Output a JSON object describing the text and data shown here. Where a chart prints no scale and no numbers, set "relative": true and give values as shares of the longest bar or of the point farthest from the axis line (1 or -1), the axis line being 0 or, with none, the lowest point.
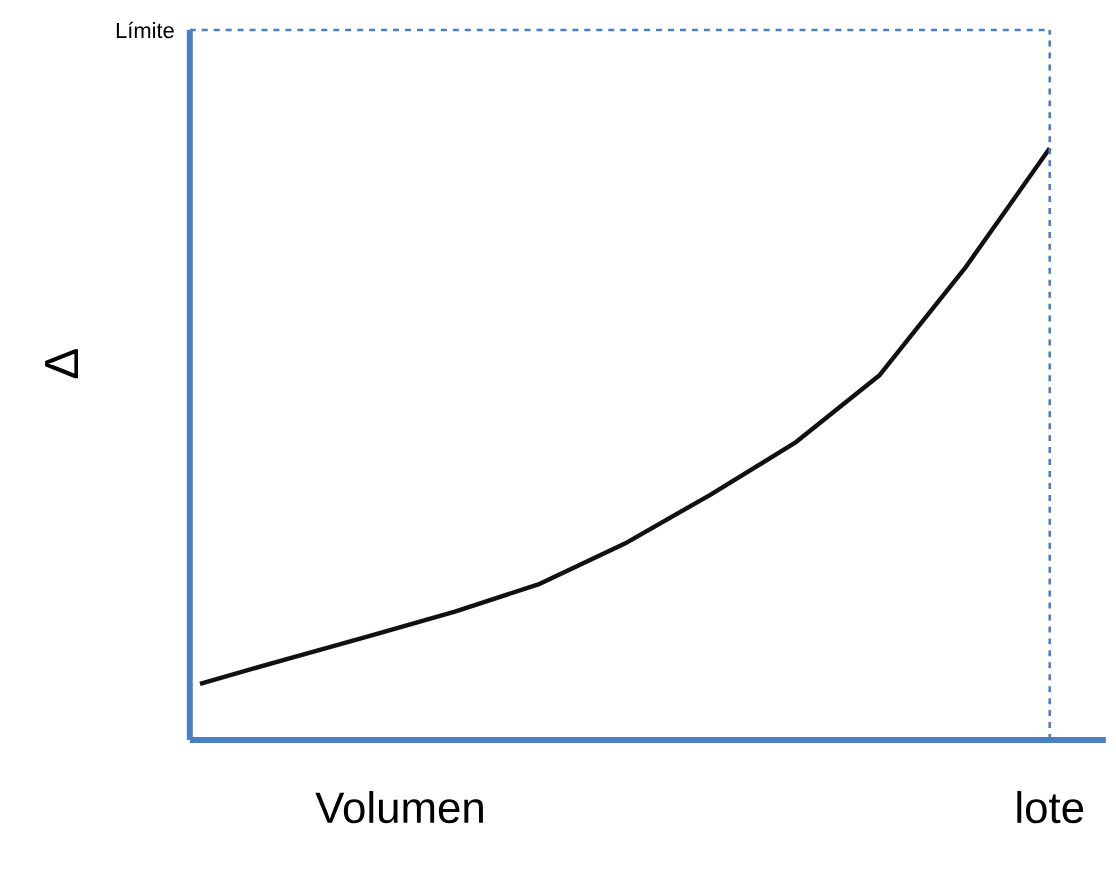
{
  "chart_data": {
    "type": "line",
    "relative": true,
    "xlabel": "Volumen",
    "ylabel": "Δ",
    "categories": [
      null,
      null,
      null,
      null,
      null,
      null,
      null,
      null,
      null,
      null,
      null
    ],
    "series": [
      {
        "color": "#111111",
        "values": [
          0.095,
          0.136,
          0.176,
          0.217,
          0.264,
          0.332,
          0.414,
          0.502,
          0.617,
          0.797,
          1
        ]
      }
    ],
    "marker": "none",
    "line_style": "solid",
    "ref_lines": [
      {
        "axis": "y",
        "value": 1.2,
        "label": "Límite",
        "color": "#4a7fc1",
        "line_style": "dashed"
      }
    ],
    "annotations": [
      "lote"
    ]
  }
}
